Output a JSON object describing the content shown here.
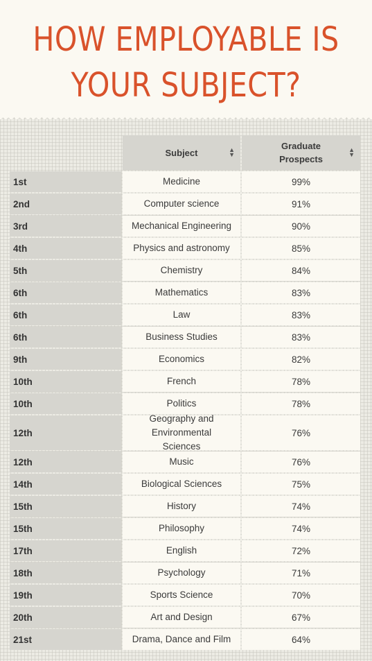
{
  "title_lines": [
    "HOW EMPLOYABLE IS",
    "YOUR SUBJECT?"
  ],
  "colors": {
    "title": "#d9522b",
    "rank_bg": "#d6d5cf",
    "cell_bg": "#fbf9f2"
  },
  "icons": {
    "sort": "sort-up-down-icon"
  },
  "chart_data": {
    "type": "table",
    "columns": [
      "",
      "Subject",
      "Graduate Prospects"
    ],
    "rows": [
      {
        "rank": "1st",
        "subject": "Medicine",
        "prospects": "99%"
      },
      {
        "rank": "2nd",
        "subject": "Computer science",
        "prospects": "91%"
      },
      {
        "rank": "3rd",
        "subject": "Mechanical Engineering",
        "prospects": "90%"
      },
      {
        "rank": "4th",
        "subject": "Physics and astronomy",
        "prospects": "85%"
      },
      {
        "rank": "5th",
        "subject": "Chemistry",
        "prospects": "84%"
      },
      {
        "rank": "6th",
        "subject": "Mathematics",
        "prospects": "83%"
      },
      {
        "rank": "6th",
        "subject": "Law",
        "prospects": "83%"
      },
      {
        "rank": "6th",
        "subject": "Business Studies",
        "prospects": "83%"
      },
      {
        "rank": "9th",
        "subject": "Economics",
        "prospects": "82%"
      },
      {
        "rank": "10th",
        "subject": "French",
        "prospects": "78%"
      },
      {
        "rank": "10th",
        "subject": "Politics",
        "prospects": "78%"
      },
      {
        "rank": "12th",
        "subject": "Geography and Environmental Sciences",
        "prospects": "76%"
      },
      {
        "rank": "12th",
        "subject": "Music",
        "prospects": "76%"
      },
      {
        "rank": "14th",
        "subject": "Biological Sciences",
        "prospects": "75%"
      },
      {
        "rank": "15th",
        "subject": "History",
        "prospects": "74%"
      },
      {
        "rank": "15th",
        "subject": "Philosophy",
        "prospects": "74%"
      },
      {
        "rank": "17th",
        "subject": "English",
        "prospects": "72%"
      },
      {
        "rank": "18th",
        "subject": "Psychology",
        "prospects": "71%"
      },
      {
        "rank": "19th",
        "subject": "Sports Science",
        "prospects": "70%"
      },
      {
        "rank": "20th",
        "subject": "Art and Design",
        "prospects": "67%"
      },
      {
        "rank": "21st",
        "subject": "Drama, Dance and Film",
        "prospects": "64%"
      }
    ]
  }
}
